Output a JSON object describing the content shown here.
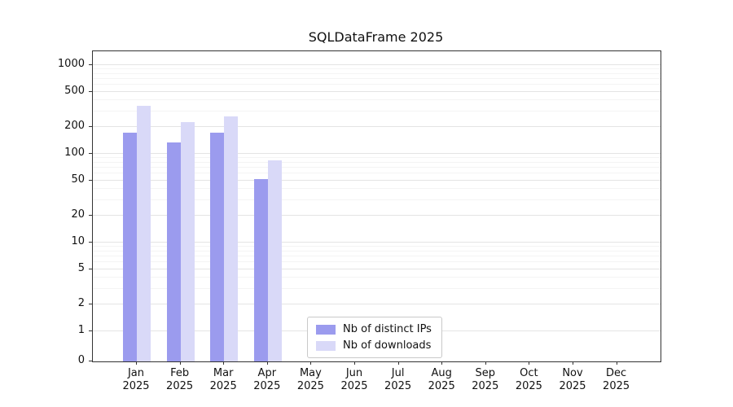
{
  "chart_data": {
    "type": "bar",
    "title": "SQLDataFrame 2025",
    "y_scale": "symlog",
    "grid": true,
    "legend_position": "lower center inside plot",
    "y_ticks": [
      0,
      1,
      2,
      5,
      10,
      20,
      50,
      100,
      200,
      500,
      1000
    ],
    "ylim": [
      0,
      1000
    ],
    "x_labels": [
      {
        "line1": "Jan",
        "line2": "2025"
      },
      {
        "line1": "Feb",
        "line2": "2025"
      },
      {
        "line1": "Mar",
        "line2": "2025"
      },
      {
        "line1": "Apr",
        "line2": "2025"
      },
      {
        "line1": "May",
        "line2": "2025"
      },
      {
        "line1": "Jun",
        "line2": "2025"
      },
      {
        "line1": "Jul",
        "line2": "2025"
      },
      {
        "line1": "Aug",
        "line2": "2025"
      },
      {
        "line1": "Sep",
        "line2": "2025"
      },
      {
        "line1": "Oct",
        "line2": "2025"
      },
      {
        "line1": "Nov",
        "line2": "2025"
      },
      {
        "line1": "Dec",
        "line2": "2025"
      }
    ],
    "series": [
      {
        "name": "Nb of distinct IPs",
        "color": "#9b9bee",
        "values": [
          175,
          135,
          175,
          52,
          0,
          0,
          0,
          0,
          0,
          0,
          0,
          0
        ]
      },
      {
        "name": "Nb of downloads",
        "color": "#d9d9f8",
        "values": [
          350,
          230,
          265,
          85,
          0,
          0,
          0,
          0,
          0,
          0,
          0,
          0
        ]
      }
    ]
  }
}
